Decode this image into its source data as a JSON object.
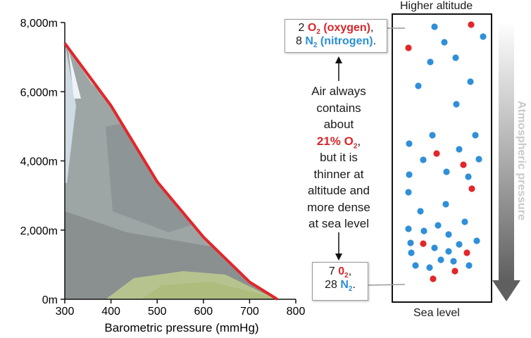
{
  "chart_data": {
    "type": "line",
    "x": [
      760,
      700,
      600,
      500,
      400,
      300
    ],
    "y": [
      0,
      500,
      1800,
      3400,
      5600,
      7400
    ],
    "xlabel": "Barometric pressure (mmHg)",
    "ylabel": "",
    "xlim": [
      300,
      800
    ],
    "ylim": [
      0,
      8000
    ],
    "x_ticks": [
      "300",
      "400",
      "500",
      "600",
      "700",
      "800"
    ],
    "y_ticks": [
      "0m",
      "2,000m",
      "4,000m",
      "6,000m",
      "8,000m"
    ],
    "colors": {
      "line": "#e3262a"
    }
  },
  "column": {
    "top_label": "Higher altitude",
    "bottom_label": "Sea level",
    "arrow_label": "Atmospheric pressure",
    "top_group": {
      "o2_count": 2,
      "n2_count": 8
    },
    "bottom_group": {
      "o2_count": 7,
      "n2_count": 28
    },
    "colors": {
      "o2": "#e3262a",
      "n2": "#2f8fd8"
    }
  },
  "top_box": {
    "line1_num": "2",
    "line1_formula": "O",
    "line1_sub": "2",
    "line1_name": " (oxygen)",
    "line1_end": ",",
    "line2_num": "8",
    "line2_formula": "N",
    "line2_sub": "2",
    "line2_name": " (nitrogen)",
    "line2_end": "."
  },
  "callout": {
    "line1": "Air always",
    "line2": "contains",
    "line3": "about",
    "emph": "21% O",
    "emph_sub": "2",
    "emph_end": ",",
    "line5": "but it is",
    "line6": "thinner at",
    "line7": "altitude and",
    "line8": "more dense",
    "line9": "at sea level"
  },
  "bottom_box": {
    "line1_num": "7",
    "line1_formula": "0",
    "line1_sub": "2",
    "line1_end": ",",
    "line2_num": "28",
    "line2_formula": "N",
    "line2_sub": "2",
    "line2_end": "."
  }
}
